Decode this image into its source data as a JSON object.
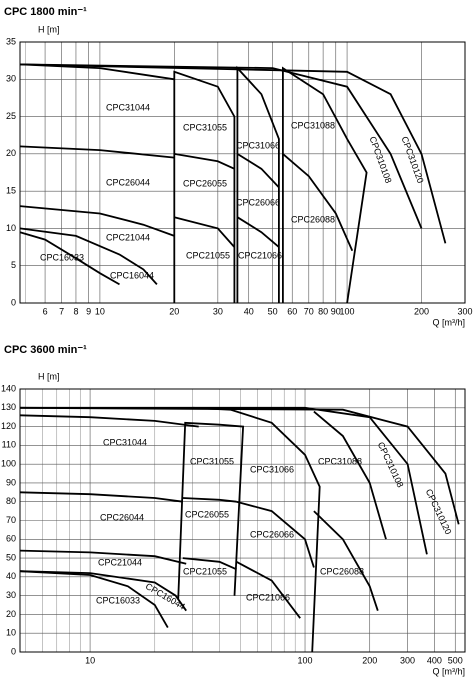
{
  "chart_data": [
    {
      "type": "line",
      "title": "CPC  1800 min⁻¹",
      "y_label": "H [m]",
      "x_label": "Q [m³/h]",
      "log_x": true,
      "grid": true,
      "color": "#000000",
      "xlim": [
        4.75,
        300
      ],
      "ylim": [
        0,
        35
      ],
      "xticks": [
        6,
        7,
        8,
        9,
        10,
        20,
        30,
        40,
        50,
        60,
        70,
        80,
        90,
        100,
        200,
        300
      ],
      "yticks": [
        0,
        5,
        10,
        15,
        20,
        25,
        30,
        35
      ],
      "series": [
        {
          "name": "CPC16033",
          "x": [
            4.75,
            6,
            8,
            10,
            12
          ],
          "values": [
            9.5,
            8.5,
            6,
            4,
            2.5
          ]
        },
        {
          "name": "CPC16044",
          "x": [
            4.75,
            8,
            12,
            15,
            17
          ],
          "values": [
            10,
            9,
            6.5,
            4.5,
            2.5
          ]
        },
        {
          "name": "CPC21044",
          "x": [
            4.75,
            10,
            15,
            20
          ],
          "values": [
            13,
            12,
            10.5,
            9
          ]
        },
        {
          "name": "CPC21055",
          "x": [
            20,
            30,
            35
          ],
          "values": [
            11.5,
            10,
            7.5
          ]
        },
        {
          "name": "CPC21066",
          "x": [
            36,
            45,
            53
          ],
          "values": [
            11.5,
            9.5,
            7.5
          ]
        },
        {
          "name": "CPC26044",
          "x": [
            4.75,
            10,
            20
          ],
          "values": [
            21,
            20.5,
            19.5
          ]
        },
        {
          "name": "CPC26055",
          "x": [
            20,
            30,
            35
          ],
          "values": [
            20,
            19,
            18
          ]
        },
        {
          "name": "CPC26066",
          "x": [
            36,
            45,
            53
          ],
          "values": [
            20,
            18,
            15.5
          ]
        },
        {
          "name": "CPC26088",
          "x": [
            55,
            70,
            90,
            105
          ],
          "values": [
            20,
            17,
            12,
            7
          ]
        },
        {
          "name": "CPC31044",
          "x": [
            4.75,
            10,
            20
          ],
          "values": [
            32,
            31.5,
            30
          ]
        },
        {
          "name": "CPC31055",
          "x": [
            20,
            20,
            30,
            35,
            35
          ],
          "values": [
            0,
            31,
            29,
            25,
            0
          ]
        },
        {
          "name": "CPC31066",
          "x": [
            36,
            36,
            45,
            53,
            53
          ],
          "values": [
            0,
            31.5,
            28,
            22,
            0
          ]
        },
        {
          "name": "CPC31088",
          "x": [
            55,
            55,
            80,
            100,
            120,
            100
          ],
          "values": [
            0,
            31.5,
            28,
            22,
            17.5,
            0
          ]
        },
        {
          "name": "CPC310108",
          "x": [
            4.75,
            50,
            100,
            150,
            200
          ],
          "values": [
            32,
            31.5,
            29,
            20,
            10
          ]
        },
        {
          "name": "CPC310120",
          "x": [
            4.75,
            100,
            150,
            200,
            250
          ],
          "values": [
            32,
            31,
            28,
            20,
            8
          ]
        }
      ]
    },
    {
      "type": "line",
      "title": "CPC  3600 min⁻¹",
      "y_label": "H [m]",
      "x_label": "Q [m³/h]",
      "log_x": true,
      "grid": true,
      "color": "#000000",
      "xlim": [
        4.72,
        555
      ],
      "ylim": [
        0,
        140
      ],
      "xticks": [
        10,
        100,
        200,
        300,
        400,
        500
      ],
      "yticks": [
        0,
        10,
        20,
        30,
        40,
        50,
        60,
        70,
        80,
        90,
        100,
        110,
        120,
        130,
        140
      ],
      "series": [
        {
          "name": "CPC16033",
          "x": [
            4.72,
            10,
            15,
            20,
            23
          ],
          "values": [
            43,
            41,
            35,
            25,
            13
          ]
        },
        {
          "name": "CPC16044",
          "x": [
            4.72,
            10,
            20,
            25,
            28
          ],
          "values": [
            43,
            42,
            37,
            30,
            22
          ]
        },
        {
          "name": "CPC21044",
          "x": [
            4.72,
            10,
            20,
            28
          ],
          "values": [
            54,
            53,
            51,
            47
          ]
        },
        {
          "name": "CPC21055",
          "x": [
            27,
            40,
            48
          ],
          "values": [
            50,
            48,
            44
          ]
        },
        {
          "name": "CPC21066",
          "x": [
            48,
            70,
            95
          ],
          "values": [
            48,
            38,
            18
          ]
        },
        {
          "name": "CPC26044",
          "x": [
            4.72,
            10,
            20,
            27
          ],
          "values": [
            85,
            84,
            82,
            80
          ]
        },
        {
          "name": "CPC26055",
          "x": [
            27,
            40,
            48
          ],
          "values": [
            82,
            81,
            80
          ]
        },
        {
          "name": "CPC26066",
          "x": [
            48,
            70,
            100,
            110
          ],
          "values": [
            80,
            75,
            60,
            45
          ]
        },
        {
          "name": "CPC26088",
          "x": [
            110,
            150,
            200,
            218
          ],
          "values": [
            75,
            60,
            35,
            22
          ]
        },
        {
          "name": "CPC31044",
          "x": [
            4.72,
            10,
            20,
            32
          ],
          "values": [
            126,
            125,
            123,
            120
          ]
        },
        {
          "name": "CPC31055",
          "x": [
            25.7,
            27.7,
            40,
            51.5,
            47
          ],
          "values": [
            28,
            122,
            121,
            120,
            30
          ]
        },
        {
          "name": "CPC31066",
          "x": [
            30,
            45,
            70,
            100,
            117,
            108
          ],
          "values": [
            130,
            129,
            122,
            105,
            88,
            0
          ]
        },
        {
          "name": "CPC31088",
          "x": [
            110,
            150,
            200,
            238
          ],
          "values": [
            128,
            115,
            90,
            60
          ]
        },
        {
          "name": "CPC310108",
          "x": [
            4.72,
            100,
            200,
            300,
            369
          ],
          "values": [
            130,
            130,
            125,
            100,
            52
          ]
        },
        {
          "name": "CPC310120",
          "x": [
            4.72,
            150,
            300,
            450,
            519
          ],
          "values": [
            130,
            129,
            120,
            95,
            68
          ]
        }
      ]
    }
  ]
}
